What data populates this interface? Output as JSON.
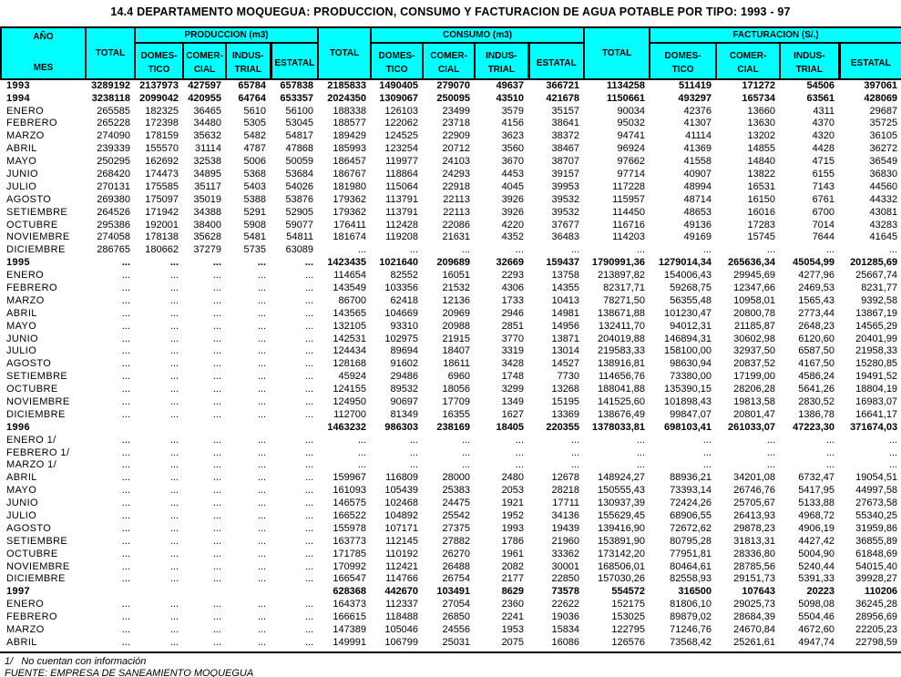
{
  "title": "14.4  DEPARTAMENTO MOQUEGUA: PRODUCCION, CONSUMO Y FACTURACION DE AGUA POTABLE POR TIPO: 1993 - 97",
  "colors": {
    "header_bg": "#00FFFF",
    "border": "#000000",
    "text": "#000000",
    "page_bg": "#FFFFFF"
  },
  "header": {
    "corner_top": "AÑO",
    "corner_bottom": "MES",
    "total_label": "TOTAL",
    "groups": [
      {
        "label": "PRODUCCION (m3)"
      },
      {
        "label": "CONSUMO (m3)"
      },
      {
        "label": "FACTURACION (S/.)"
      }
    ],
    "sub": [
      {
        "l1": "DOMES-",
        "l2": "TICO"
      },
      {
        "l1": "COMER-",
        "l2": "CIAL"
      },
      {
        "l1": "INDUS-",
        "l2": "TRIAL"
      },
      {
        "l1": "ESTATAL",
        "l2": ""
      }
    ]
  },
  "rows": [
    {
      "label": "1993",
      "bold": true,
      "cells": [
        "3289192",
        "2137973",
        "427597",
        "65784",
        "657838",
        "2185833",
        "1490405",
        "279070",
        "49637",
        "366721",
        "1134258",
        "511419",
        "171272",
        "54506",
        "397061"
      ]
    },
    {
      "label": "1994",
      "bold": true,
      "cells": [
        "3238118",
        "2099042",
        "420955",
        "64764",
        "653357",
        "2024350",
        "1309067",
        "250095",
        "43510",
        "421678",
        "1150661",
        "493297",
        "165734",
        "63561",
        "428069"
      ]
    },
    {
      "label": "ENERO",
      "bold": false,
      "cells": [
        "265585",
        "182325",
        "36465",
        "5610",
        "56100",
        "188338",
        "126103",
        "23499",
        "3579",
        "35157",
        "90034",
        "42376",
        "13660",
        "4311",
        "29687"
      ]
    },
    {
      "label": "FEBRERO",
      "bold": false,
      "cells": [
        "265228",
        "172398",
        "34480",
        "5305",
        "53045",
        "188577",
        "122062",
        "23718",
        "4156",
        "38641",
        "95032",
        "41307",
        "13630",
        "4370",
        "35725"
      ]
    },
    {
      "label": "MARZO",
      "bold": false,
      "cells": [
        "274090",
        "178159",
        "35632",
        "5482",
        "54817",
        "189429",
        "124525",
        "22909",
        "3623",
        "38372",
        "94741",
        "41114",
        "13202",
        "4320",
        "36105"
      ]
    },
    {
      "label": "ABRIL",
      "bold": false,
      "cells": [
        "239339",
        "155570",
        "31114",
        "4787",
        "47868",
        "185993",
        "123254",
        "20712",
        "3560",
        "38467",
        "96924",
        "41369",
        "14855",
        "4428",
        "36272"
      ]
    },
    {
      "label": "MAYO",
      "bold": false,
      "cells": [
        "250295",
        "162692",
        "32538",
        "5006",
        "50059",
        "186457",
        "119977",
        "24103",
        "3670",
        "38707",
        "97662",
        "41558",
        "14840",
        "4715",
        "36549"
      ]
    },
    {
      "label": "JUNIO",
      "bold": false,
      "cells": [
        "268420",
        "174473",
        "34895",
        "5368",
        "53684",
        "186767",
        "118864",
        "24293",
        "4453",
        "39157",
        "97714",
        "40907",
        "13822",
        "6155",
        "36830"
      ]
    },
    {
      "label": "JULIO",
      "bold": false,
      "cells": [
        "270131",
        "175585",
        "35117",
        "5403",
        "54026",
        "181980",
        "115064",
        "22918",
        "4045",
        "39953",
        "117228",
        "48994",
        "16531",
        "7143",
        "44560"
      ]
    },
    {
      "label": "AGOSTO",
      "bold": false,
      "cells": [
        "269380",
        "175097",
        "35019",
        "5388",
        "53876",
        "179362",
        "113791",
        "22113",
        "3926",
        "39532",
        "115957",
        "48714",
        "16150",
        "6761",
        "44332"
      ]
    },
    {
      "label": "SETIEMBRE",
      "bold": false,
      "cells": [
        "264526",
        "171942",
        "34388",
        "5291",
        "52905",
        "179362",
        "113791",
        "22113",
        "3926",
        "39532",
        "114450",
        "48653",
        "16016",
        "6700",
        "43081"
      ]
    },
    {
      "label": "OCTUBRE",
      "bold": false,
      "cells": [
        "295386",
        "192001",
        "38400",
        "5908",
        "59077",
        "176411",
        "112428",
        "22086",
        "4220",
        "37677",
        "116716",
        "49136",
        "17283",
        "7014",
        "43283"
      ]
    },
    {
      "label": "NOVIEMBRE",
      "bold": false,
      "cells": [
        "274058",
        "178138",
        "35628",
        "5481",
        "54811",
        "181674",
        "119208",
        "21631",
        "4352",
        "36483",
        "114203",
        "49169",
        "15745",
        "7644",
        "41645"
      ]
    },
    {
      "label": "DICIEMBRE",
      "bold": false,
      "cells": [
        "286765",
        "180662",
        "37279",
        "5735",
        "63089",
        "...",
        "...",
        "...",
        "...",
        "...",
        "...",
        "...",
        "...",
        "...",
        "..."
      ]
    },
    {
      "label": "1995",
      "bold": true,
      "cells": [
        "...",
        "...",
        "...",
        "...",
        "...",
        "1423435",
        "1021640",
        "209689",
        "32669",
        "159437",
        "1790991,36",
        "1279014,34",
        "265636,34",
        "45054,99",
        "201285,69"
      ]
    },
    {
      "label": "ENERO",
      "bold": false,
      "cells": [
        "...",
        "...",
        "...",
        "...",
        "...",
        "114654",
        "82552",
        "16051",
        "2293",
        "13758",
        "213897,82",
        "154006,43",
        "29945,69",
        "4277,96",
        "25667,74"
      ]
    },
    {
      "label": "FEBRERO",
      "bold": false,
      "cells": [
        "...",
        "...",
        "...",
        "...",
        "...",
        "143549",
        "103356",
        "21532",
        "4306",
        "14355",
        "82317,71",
        "59268,75",
        "12347,66",
        "2469,53",
        "8231,77"
      ]
    },
    {
      "label": "MARZO",
      "bold": false,
      "cells": [
        "...",
        "...",
        "...",
        "...",
        "...",
        "86700",
        "62418",
        "12136",
        "1733",
        "10413",
        "78271,50",
        "56355,48",
        "10958,01",
        "1565,43",
        "9392,58"
      ]
    },
    {
      "label": "ABRIL",
      "bold": false,
      "cells": [
        "...",
        "...",
        "...",
        "...",
        "...",
        "143565",
        "104669",
        "20969",
        "2946",
        "14981",
        "138671,88",
        "101230,47",
        "20800,78",
        "2773,44",
        "13867,19"
      ]
    },
    {
      "label": "MAYO",
      "bold": false,
      "cells": [
        "...",
        "...",
        "...",
        "...",
        "...",
        "132105",
        "93310",
        "20988",
        "2851",
        "14956",
        "132411,70",
        "94012,31",
        "21185,87",
        "2648,23",
        "14565,29"
      ]
    },
    {
      "label": "JUNIO",
      "bold": false,
      "cells": [
        "...",
        "...",
        "...",
        "...",
        "...",
        "142531",
        "102975",
        "21915",
        "3770",
        "13871",
        "204019,88",
        "146894,31",
        "30602,98",
        "6120,60",
        "20401,99"
      ]
    },
    {
      "label": "JULIO",
      "bold": false,
      "cells": [
        "...",
        "...",
        "...",
        "...",
        "...",
        "124434",
        "89694",
        "18407",
        "3319",
        "13014",
        "219583,33",
        "158100,00",
        "32937,50",
        "6587,50",
        "21958,33"
      ]
    },
    {
      "label": "AGOSTO",
      "bold": false,
      "cells": [
        "...",
        "...",
        "...",
        "...",
        "...",
        "128168",
        "91602",
        "18611",
        "3428",
        "14527",
        "138916,81",
        "98630,94",
        "20837,52",
        "4167,50",
        "15280,85"
      ]
    },
    {
      "label": "SETIEMBRE",
      "bold": false,
      "cells": [
        "...",
        "...",
        "...",
        "...",
        "...",
        "45924",
        "29486",
        "6960",
        "1748",
        "7730",
        "114656,76",
        "73380,00",
        "17199,00",
        "4586,24",
        "19491,52"
      ]
    },
    {
      "label": "OCTUBRE",
      "bold": false,
      "cells": [
        "...",
        "...",
        "...",
        "...",
        "...",
        "124155",
        "89532",
        "18056",
        "3299",
        "13268",
        "188041,88",
        "135390,15",
        "28206,28",
        "5641,26",
        "18804,19"
      ]
    },
    {
      "label": "NOVIEMBRE",
      "bold": false,
      "cells": [
        "...",
        "...",
        "...",
        "...",
        "...",
        "124950",
        "90697",
        "17709",
        "1349",
        "15195",
        "141525,60",
        "101898,43",
        "19813,58",
        "2830,52",
        "16983,07"
      ]
    },
    {
      "label": "DICIEMBRE",
      "bold": false,
      "cells": [
        "...",
        "...",
        "...",
        "...",
        "...",
        "112700",
        "81349",
        "16355",
        "1627",
        "13369",
        "138676,49",
        "99847,07",
        "20801,47",
        "1386,78",
        "16641,17"
      ]
    },
    {
      "label": "1996",
      "bold": true,
      "cells": [
        "",
        "",
        "",
        "",
        "",
        "1463232",
        "986303",
        "238169",
        "18405",
        "220355",
        "1378033,81",
        "698103,41",
        "261033,07",
        "47223,30",
        "371674,03"
      ]
    },
    {
      "label": "ENERO 1/",
      "bold": false,
      "cells": [
        "...",
        "...",
        "...",
        "...",
        "...",
        "...",
        "...",
        "...",
        "...",
        "...",
        "...",
        "...",
        "...",
        "...",
        "..."
      ]
    },
    {
      "label": "FEBRERO  1/",
      "bold": false,
      "cells": [
        "...",
        "...",
        "...",
        "...",
        "...",
        "...",
        "...",
        "...",
        "...",
        "...",
        "...",
        "...",
        "...",
        "...",
        "..."
      ]
    },
    {
      "label": "MARZO 1/",
      "bold": false,
      "cells": [
        "...",
        "...",
        "...",
        "...",
        "...",
        "...",
        "...",
        "...",
        "...",
        "...",
        "...",
        "...",
        "...",
        "...",
        "..."
      ]
    },
    {
      "label": "ABRIL",
      "bold": false,
      "cells": [
        "...",
        "...",
        "...",
        "...",
        "...",
        "159967",
        "116809",
        "28000",
        "2480",
        "12678",
        "148924,27",
        "88936,21",
        "34201,08",
        "6732,47",
        "19054,51"
      ]
    },
    {
      "label": "MAYO",
      "bold": false,
      "cells": [
        "...",
        "...",
        "...",
        "...",
        "...",
        "161093",
        "105439",
        "25383",
        "2053",
        "28218",
        "150555,43",
        "73393,14",
        "26746,76",
        "5417,95",
        "44997,58"
      ]
    },
    {
      "label": "JUNIO",
      "bold": false,
      "cells": [
        "...",
        "...",
        "...",
        "...",
        "...",
        "146575",
        "102468",
        "24475",
        "1921",
        "17711",
        "130937,39",
        "72424,26",
        "25705,67",
        "5133,88",
        "27673,58"
      ]
    },
    {
      "label": "JULIO",
      "bold": false,
      "cells": [
        "...",
        "...",
        "...",
        "...",
        "...",
        "166522",
        "104892",
        "25542",
        "1952",
        "34136",
        "155629,45",
        "68906,55",
        "26413,93",
        "4968,72",
        "55340,25"
      ]
    },
    {
      "label": "AGOSTO",
      "bold": false,
      "cells": [
        "...",
        "...",
        "...",
        "...",
        "...",
        "155978",
        "107171",
        "27375",
        "1993",
        "19439",
        "139416,90",
        "72672,62",
        "29878,23",
        "4906,19",
        "31959,86"
      ]
    },
    {
      "label": "SETIEMBRE",
      "bold": false,
      "cells": [
        "...",
        "...",
        "...",
        "...",
        "...",
        "163773",
        "112145",
        "27882",
        "1786",
        "21960",
        "153891,90",
        "80795,28",
        "31813,31",
        "4427,42",
        "36855,89"
      ]
    },
    {
      "label": "OCTUBRE",
      "bold": false,
      "cells": [
        "...",
        "...",
        "...",
        "...",
        "...",
        "171785",
        "110192",
        "26270",
        "1961",
        "33362",
        "173142,20",
        "77951,81",
        "28336,80",
        "5004,90",
        "61848,69"
      ]
    },
    {
      "label": "NOVIEMBRE",
      "bold": false,
      "cells": [
        "...",
        "...",
        "...",
        "...",
        "...",
        "170992",
        "112421",
        "26488",
        "2082",
        "30001",
        "168506,01",
        "80464,61",
        "28785,56",
        "5240,44",
        "54015,40"
      ]
    },
    {
      "label": "DICIEMBRE",
      "bold": false,
      "cells": [
        "...",
        "...",
        "...",
        "...",
        "...",
        "166547",
        "114766",
        "26754",
        "2177",
        "22850",
        "157030,26",
        "82558,93",
        "29151,73",
        "5391,33",
        "39928,27"
      ]
    },
    {
      "label": "1997",
      "bold": true,
      "cells": [
        "",
        "",
        "",
        "",
        "",
        "628368",
        "442670",
        "103491",
        "8629",
        "73578",
        "554572",
        "316500",
        "107643",
        "20223",
        "110206"
      ]
    },
    {
      "label": "ENERO",
      "bold": false,
      "cells": [
        "...",
        "...",
        "...",
        "...",
        "...",
        "164373",
        "112337",
        "27054",
        "2360",
        "22622",
        "152175",
        "81806,10",
        "29025,73",
        "5098,08",
        "36245,28"
      ]
    },
    {
      "label": "FEBRERO",
      "bold": false,
      "cells": [
        "...",
        "...",
        "...",
        "...",
        "...",
        "166615",
        "118488",
        "26850",
        "2241",
        "19036",
        "153025",
        "89879,02",
        "28684,39",
        "5504,46",
        "28956,69"
      ]
    },
    {
      "label": "MARZO",
      "bold": false,
      "cells": [
        "...",
        "...",
        "...",
        "...",
        "...",
        "147389",
        "105046",
        "24556",
        "1953",
        "15834",
        "122795",
        "71246,76",
        "24670,84",
        "4672,60",
        "22205,23"
      ]
    },
    {
      "label": "ABRIL",
      "bold": false,
      "cells": [
        "...",
        "...",
        "...",
        "...",
        "...",
        "149991",
        "106799",
        "25031",
        "2075",
        "16086",
        "126576",
        "73568,42",
        "25261,61",
        "4947,74",
        "22798,59"
      ]
    }
  ],
  "footnotes": {
    "note1": "1/   No cuentan con información",
    "source": "FUENTE: EMPRESA DE SANEAMIENTO MOQUEGUA"
  }
}
